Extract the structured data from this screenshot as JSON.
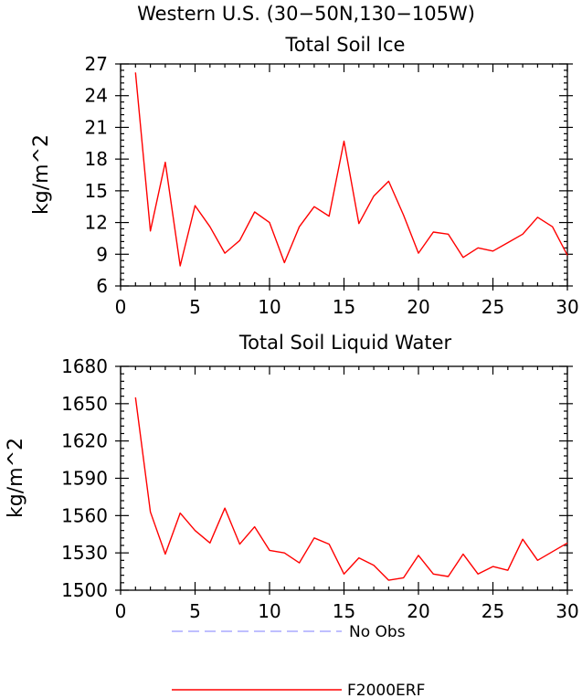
{
  "page_title": "Western U.S. (30−50N,130−105W)",
  "legend": {
    "items": [
      {
        "label": "No Obs",
        "color": "#aaaaff",
        "style": "dashed"
      },
      {
        "label": "F2000ERF",
        "color": "#ff0000",
        "style": "solid"
      }
    ]
  },
  "chart_data": [
    {
      "type": "line",
      "title": "Total Soil Ice",
      "xlabel": "",
      "ylabel": "kg/m^2",
      "xlim": [
        0,
        30
      ],
      "ylim": [
        6,
        27
      ],
      "xticks": [
        0,
        5,
        10,
        15,
        20,
        25,
        30
      ],
      "xtick_labels": [
        "0",
        "5",
        "10",
        "15",
        "20",
        "25",
        "30"
      ],
      "yticks": [
        6,
        9,
        12,
        15,
        18,
        21,
        24,
        27
      ],
      "ytick_labels": [
        "6",
        "9",
        "12",
        "15",
        "18",
        "21",
        "24",
        "27"
      ],
      "grid": false,
      "series": [
        {
          "name": "F2000ERF",
          "color": "#ff0000",
          "x": [
            1,
            2,
            3,
            4,
            5,
            6,
            7,
            8,
            9,
            10,
            11,
            12,
            13,
            14,
            15,
            16,
            17,
            18,
            19,
            20,
            21,
            22,
            23,
            24,
            25,
            26,
            27,
            28,
            29,
            30
          ],
          "y": [
            26.2,
            11.2,
            17.7,
            7.9,
            13.6,
            11.6,
            9.1,
            10.3,
            13.0,
            12.0,
            8.2,
            11.6,
            13.5,
            12.6,
            19.7,
            11.9,
            14.5,
            15.9,
            12.7,
            9.1,
            11.1,
            10.9,
            8.7,
            9.6,
            9.3,
            10.1,
            10.9,
            12.5,
            11.6,
            8.9
          ]
        }
      ]
    },
    {
      "type": "line",
      "title": "Total Soil Liquid Water",
      "xlabel": "",
      "ylabel": "kg/m^2",
      "xlim": [
        0,
        30
      ],
      "ylim": [
        1500,
        1680
      ],
      "xticks": [
        0,
        5,
        10,
        15,
        20,
        25,
        30
      ],
      "xtick_labels": [
        "0",
        "5",
        "10",
        "15",
        "20",
        "25",
        "30"
      ],
      "yticks": [
        1500,
        1530,
        1560,
        1590,
        1620,
        1650,
        1680
      ],
      "ytick_labels": [
        "1500",
        "1530",
        "1560",
        "1590",
        "1620",
        "1650",
        "1680"
      ],
      "grid": false,
      "series": [
        {
          "name": "F2000ERF",
          "color": "#ff0000",
          "x": [
            1,
            2,
            3,
            4,
            5,
            6,
            7,
            8,
            9,
            10,
            11,
            12,
            13,
            14,
            15,
            16,
            17,
            18,
            19,
            20,
            21,
            22,
            23,
            24,
            25,
            26,
            27,
            28,
            29,
            30
          ],
          "y": [
            1655,
            1563,
            1529,
            1562,
            1548,
            1538,
            1566,
            1537,
            1551,
            1532,
            1530,
            1522,
            1542,
            1537,
            1513,
            1526,
            1520,
            1508,
            1510,
            1528,
            1513,
            1511,
            1529,
            1513,
            1519,
            1516,
            1541,
            1524,
            1531,
            1538
          ]
        }
      ]
    }
  ]
}
